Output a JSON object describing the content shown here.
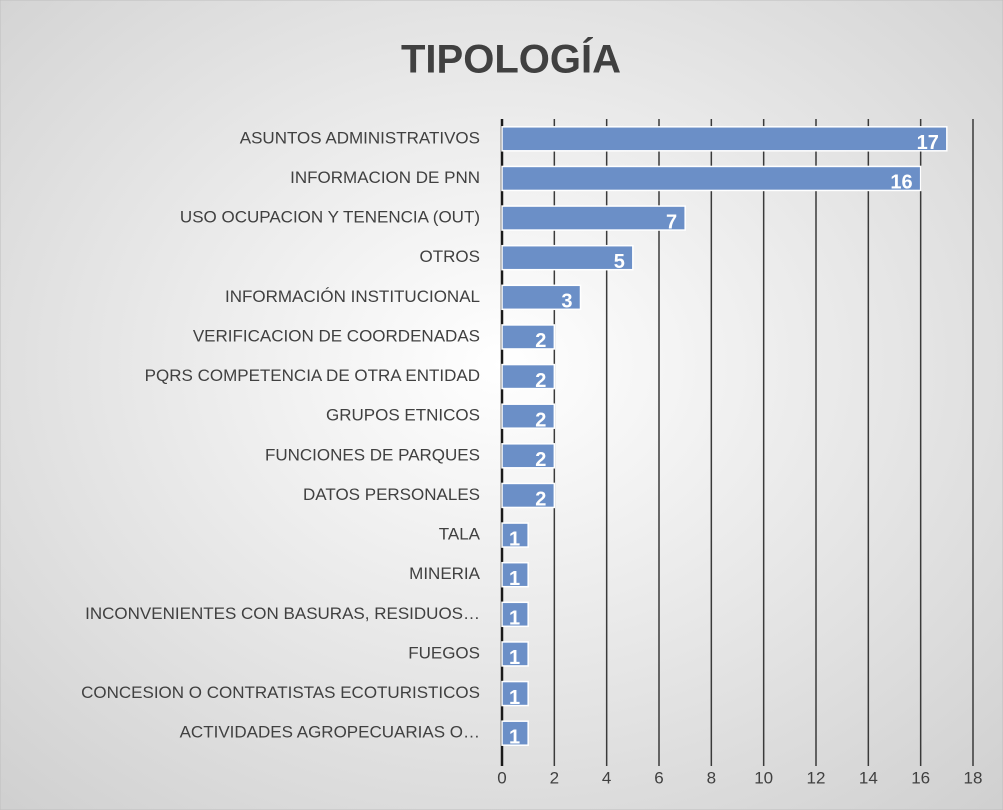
{
  "chart_data": {
    "type": "bar",
    "orientation": "horizontal",
    "title": "TIPOLOGÍA",
    "categories": [
      "ASUNTOS ADMINISTRATIVOS",
      "INFORMACION DE PNN",
      "USO OCUPACION Y TENENCIA (OUT)",
      "OTROS",
      "INFORMACIÓN INSTITUCIONAL",
      "VERIFICACION DE COORDENADAS",
      "PQRS COMPETENCIA DE OTRA ENTIDAD",
      "GRUPOS ETNICOS",
      "FUNCIONES DE PARQUES",
      "DATOS PERSONALES",
      "TALA",
      "MINERIA",
      "INCONVENIENTES CON BASURAS, RESIDUOS…",
      "FUEGOS",
      "CONCESION O CONTRATISTAS ECOTURISTICOS",
      "ACTIVIDADES AGROPECUARIAS O…"
    ],
    "values": [
      17,
      16,
      7,
      5,
      3,
      2,
      2,
      2,
      2,
      2,
      1,
      1,
      1,
      1,
      1,
      1
    ],
    "color": "#6b8fc7",
    "xlim": [
      0,
      18
    ],
    "xticks": [
      0,
      2,
      4,
      6,
      8,
      10,
      12,
      14,
      16,
      18
    ],
    "grid": true
  }
}
